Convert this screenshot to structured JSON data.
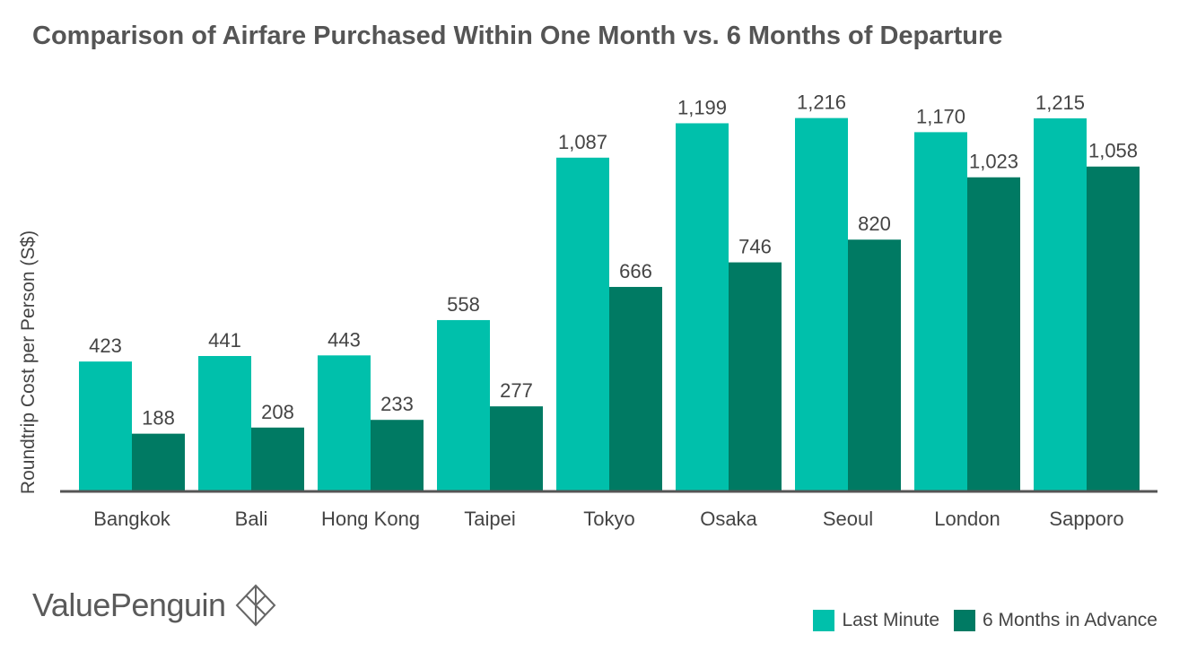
{
  "colors": {
    "last_minute": "#00c0ab",
    "six_months": "#007a63",
    "axis": "#555555",
    "text": "#444444"
  },
  "brand": {
    "name": "ValuePenguin",
    "icon": "penguin-diamond-logo-icon"
  },
  "chart_data": {
    "type": "bar",
    "title": "Comparison of Airfare Purchased Within One Month vs. 6 Months of Departure",
    "ylabel": "Roundtrip Cost per Person (S$)",
    "xlabel": "",
    "ylim": [
      0,
      1250
    ],
    "grid": false,
    "legend_position": "bottom-right",
    "categories": [
      "Bangkok",
      "Bali",
      "Hong Kong",
      "Taipei",
      "Tokyo",
      "Osaka",
      "Seoul",
      "London",
      "Sapporo"
    ],
    "series": [
      {
        "name": "Last Minute",
        "values": [
          423,
          441,
          443,
          558,
          1087,
          1199,
          1216,
          1170,
          1215
        ],
        "labels": [
          "423",
          "441",
          "443",
          "558",
          "1,087",
          "1,199",
          "1,216",
          "1,170",
          "1,215"
        ]
      },
      {
        "name": "6 Months in Advance",
        "values": [
          188,
          208,
          233,
          277,
          666,
          746,
          820,
          1023,
          1058
        ],
        "labels": [
          "188",
          "208",
          "233",
          "277",
          "666",
          "746",
          "820",
          "1,023",
          "1,058"
        ]
      }
    ]
  }
}
